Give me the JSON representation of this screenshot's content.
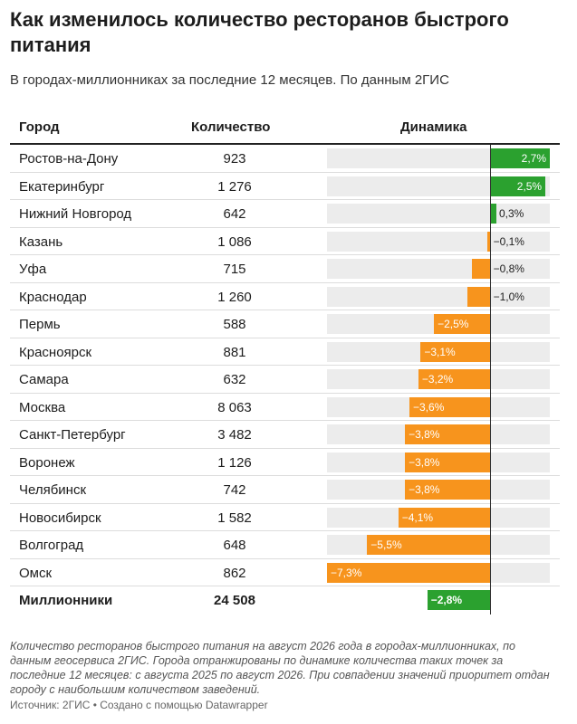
{
  "title": "Как изменилось количество ресторанов быстрого питания",
  "subtitle": "В городах-миллионниках за последние 12 месяцев. По данным 2ГИС",
  "columns": {
    "city": "Город",
    "count": "Количество",
    "dynamics": "Динамика"
  },
  "chart_data": {
    "type": "table",
    "title": "Как изменилось количество ресторанов быстрого питания",
    "columns": [
      "Город",
      "Количество",
      "Динамика"
    ],
    "unit": "%",
    "range": [
      -7.3,
      2.7
    ],
    "colors": {
      "positive": "#2ba12f",
      "negative": "#f7941d",
      "track": "#ececec"
    },
    "rows": [
      {
        "city": "Ростов-на-Дону",
        "count": "923",
        "change": 2.7,
        "label": "2,7%"
      },
      {
        "city": "Екатеринбург",
        "count": "1 276",
        "change": 2.5,
        "label": "2,5%"
      },
      {
        "city": "Нижний Новгород",
        "count": "642",
        "change": 0.3,
        "label": "0,3%"
      },
      {
        "city": "Казань",
        "count": "1 086",
        "change": -0.1,
        "label": "−0,1%"
      },
      {
        "city": "Уфа",
        "count": "715",
        "change": -0.8,
        "label": "−0,8%"
      },
      {
        "city": "Краснодар",
        "count": "1 260",
        "change": -1.0,
        "label": "−1,0%"
      },
      {
        "city": "Пермь",
        "count": "588",
        "change": -2.5,
        "label": "−2,5%"
      },
      {
        "city": "Красноярск",
        "count": "881",
        "change": -3.1,
        "label": "−3,1%"
      },
      {
        "city": "Самара",
        "count": "632",
        "change": -3.2,
        "label": "−3,2%"
      },
      {
        "city": "Москва",
        "count": "8 063",
        "change": -3.6,
        "label": "−3,6%"
      },
      {
        "city": "Санкт-Петербург",
        "count": "3 482",
        "change": -3.8,
        "label": "−3,8%"
      },
      {
        "city": "Воронеж",
        "count": "1 126",
        "change": -3.8,
        "label": "−3,8%"
      },
      {
        "city": "Челябинск",
        "count": "742",
        "change": -3.8,
        "label": "−3,8%"
      },
      {
        "city": "Новосибирск",
        "count": "1 582",
        "change": -4.1,
        "label": "−4,1%"
      },
      {
        "city": "Волгоград",
        "count": "648",
        "change": -5.5,
        "label": "−5,5%"
      },
      {
        "city": "Омск",
        "count": "862",
        "change": -7.3,
        "label": "−7,3%"
      }
    ],
    "total": {
      "city": "Миллионники",
      "count": "24 508",
      "change": -2.8,
      "label": "−2,8%",
      "color": "#2ba12f"
    }
  },
  "footnote": "Количество ресторанов быстрого питания на август 2026 года в городах-миллионниках, по данным геосервиса 2ГИС. Города отранжированы по динамике количества таких точек за последние 12 месяцев: с августа 2025 по август 2026. При совпадении значений приоритет отдан городу с наибольшим количеством заведений.",
  "source": "Источник: 2ГИС • Создано с помощью Datawrapper"
}
